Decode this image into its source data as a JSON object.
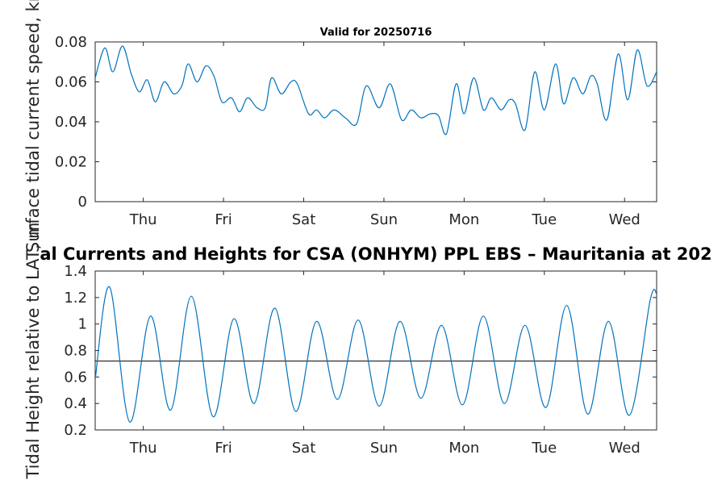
{
  "chart_data": [
    {
      "type": "line",
      "title": "Valid for 20250716",
      "ylabel": "Surface tidal current speed, kn",
      "xlim": [
        0,
        7
      ],
      "ylim": [
        0,
        0.08
      ],
      "y_ticks": [
        "0",
        "0.02",
        "0.04",
        "0.06",
        "0.08"
      ],
      "x_ticks": [
        {
          "x": 0.6,
          "label": "Thu"
        },
        {
          "x": 1.6,
          "label": "Fri"
        },
        {
          "x": 2.6,
          "label": "Sat"
        },
        {
          "x": 3.6,
          "label": "Sun"
        },
        {
          "x": 4.6,
          "label": "Mon"
        },
        {
          "x": 5.6,
          "label": "Tue"
        },
        {
          "x": 6.6,
          "label": "Wed"
        }
      ],
      "series": [
        {
          "color": "#0072BD",
          "x": [
            0,
            0.12,
            0.22,
            0.34,
            0.45,
            0.55,
            0.65,
            0.75,
            0.86,
            0.98,
            1.08,
            1.16,
            1.27,
            1.38,
            1.48,
            1.58,
            1.7,
            1.8,
            1.9,
            2.02,
            2.12,
            2.2,
            2.32,
            2.44,
            2.52,
            2.66,
            2.76,
            2.86,
            2.98,
            3.12,
            3.26,
            3.38,
            3.54,
            3.68,
            3.82,
            3.94,
            4.06,
            4.18,
            4.28,
            4.38,
            4.5,
            4.6,
            4.72,
            4.84,
            4.94,
            5.06,
            5.16,
            5.24,
            5.36,
            5.48,
            5.6,
            5.74,
            5.84,
            5.96,
            6.08,
            6.18,
            6.26,
            6.38,
            6.52,
            6.64,
            6.76,
            6.88,
            7.0
          ],
          "y": [
            0.062,
            0.077,
            0.065,
            0.078,
            0.064,
            0.055,
            0.061,
            0.05,
            0.06,
            0.054,
            0.058,
            0.069,
            0.06,
            0.068,
            0.063,
            0.05,
            0.052,
            0.045,
            0.052,
            0.047,
            0.047,
            0.062,
            0.054,
            0.06,
            0.059,
            0.044,
            0.046,
            0.042,
            0.046,
            0.042,
            0.039,
            0.058,
            0.047,
            0.059,
            0.041,
            0.046,
            0.042,
            0.044,
            0.043,
            0.034,
            0.059,
            0.044,
            0.062,
            0.046,
            0.052,
            0.046,
            0.051,
            0.049,
            0.036,
            0.065,
            0.046,
            0.069,
            0.049,
            0.062,
            0.054,
            0.063,
            0.059,
            0.041,
            0.074,
            0.051,
            0.076,
            0.058,
            0.065
          ]
        }
      ]
    },
    {
      "type": "line",
      "title": "al Currents and Heights for CSA (ONHYM) PPL EBS  – Mauritania at 202",
      "ylabel": "Tidal Height relative to LAT, m",
      "xlim": [
        0,
        7
      ],
      "ylim": [
        0.2,
        1.4
      ],
      "y_ticks": [
        "0.2",
        "0.4",
        "0.6",
        "0.8",
        "1",
        "1.2",
        "1.4"
      ],
      "x_ticks": [
        {
          "x": 0.6,
          "label": "Thu"
        },
        {
          "x": 1.6,
          "label": "Fri"
        },
        {
          "x": 2.6,
          "label": "Sat"
        },
        {
          "x": 3.6,
          "label": "Sun"
        },
        {
          "x": 4.6,
          "label": "Mon"
        },
        {
          "x": 5.6,
          "label": "Tue"
        },
        {
          "x": 6.6,
          "label": "Wed"
        }
      ],
      "reference_line": 0.72,
      "series": [
        {
          "color": "#0072BD",
          "x": [
            0,
            0.18,
            0.43,
            0.69,
            0.94,
            1.2,
            1.47,
            1.73,
            1.98,
            2.24,
            2.5,
            2.76,
            3.02,
            3.28,
            3.54,
            3.8,
            4.06,
            4.32,
            4.58,
            4.84,
            5.1,
            5.36,
            5.62,
            5.88,
            6.14,
            6.4,
            6.66,
            6.92,
            7.0
          ],
          "y": [
            0.58,
            1.28,
            0.26,
            1.06,
            0.35,
            1.21,
            0.3,
            1.04,
            0.4,
            1.12,
            0.34,
            1.02,
            0.43,
            1.03,
            0.38,
            1.02,
            0.44,
            0.99,
            0.39,
            1.06,
            0.4,
            0.99,
            0.37,
            1.14,
            0.32,
            1.02,
            0.31,
            1.18,
            1.23
          ]
        }
      ]
    }
  ]
}
